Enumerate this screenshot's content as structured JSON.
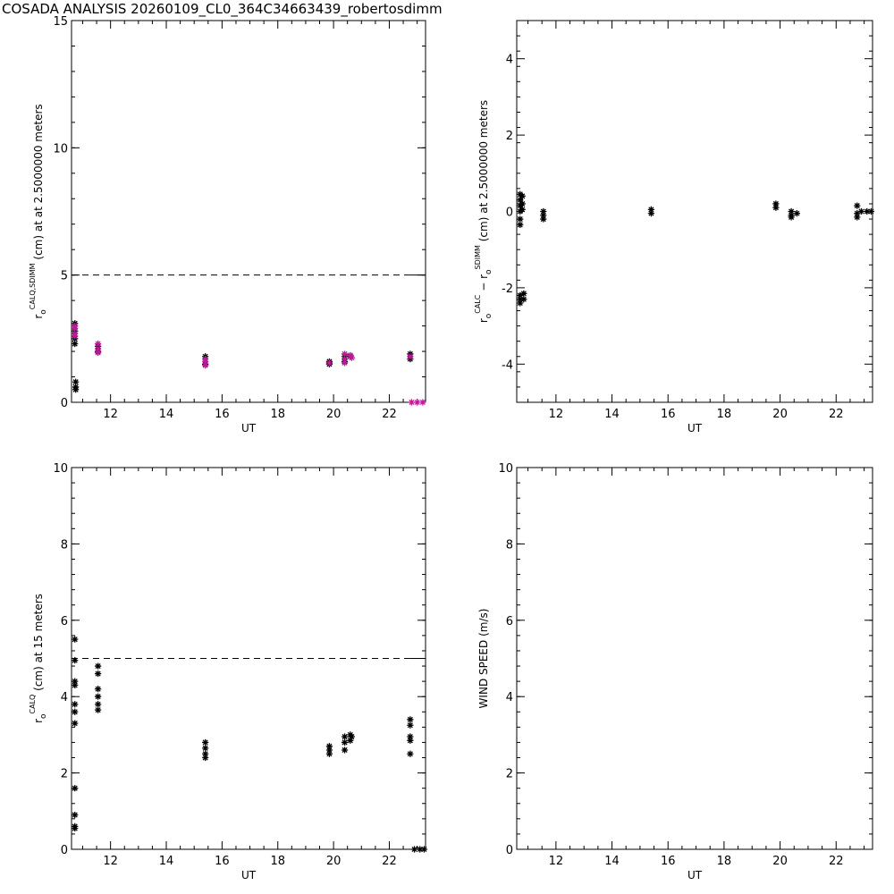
{
  "figure": {
    "title": "COSADA ANALYSIS 20260109_CL0_364C34663439_robertosdimm"
  },
  "chart_data": [
    {
      "type": "scatter",
      "ylabel": "r_o^CALQ,SDIMM (cm) at  at 2.5000000 meters",
      "ylabel_parts": {
        "r": "r",
        "o": "o",
        "sup": "CALQ,SDIMM",
        "rest": "(cm) at  at 2.5000000 meters"
      },
      "xlabel": "UT",
      "xlim": [
        10.6,
        23.3
      ],
      "ylim": [
        0,
        15
      ],
      "xticks": [
        12,
        14,
        16,
        18,
        20,
        22
      ],
      "yticks": [
        0,
        5,
        10,
        15
      ],
      "hline": 5,
      "colors": {
        "series_a": "#000000",
        "series_b": "#c0189a"
      },
      "series": [
        {
          "color": "#000000",
          "points": [
            [
              10.72,
              3.1
            ],
            [
              10.72,
              2.8
            ],
            [
              10.72,
              2.5
            ],
            [
              10.72,
              2.3
            ],
            [
              10.75,
              0.8
            ],
            [
              10.75,
              0.6
            ],
            [
              10.75,
              0.5
            ],
            [
              11.55,
              2.2
            ],
            [
              11.55,
              2.0
            ],
            [
              15.4,
              1.8
            ],
            [
              15.4,
              1.5
            ],
            [
              19.85,
              1.6
            ],
            [
              19.85,
              1.5
            ],
            [
              20.4,
              1.8
            ],
            [
              20.4,
              1.6
            ],
            [
              20.6,
              1.8
            ],
            [
              22.75,
              1.9
            ],
            [
              22.75,
              1.7
            ]
          ]
        },
        {
          "color": "#c0189a",
          "points": [
            [
              10.72,
              3.0
            ],
            [
              10.72,
              2.9
            ],
            [
              10.72,
              2.7
            ],
            [
              10.72,
              2.6
            ],
            [
              11.55,
              2.3
            ],
            [
              11.55,
              2.1
            ],
            [
              11.55,
              1.95
            ],
            [
              15.4,
              1.7
            ],
            [
              15.4,
              1.6
            ],
            [
              15.4,
              1.45
            ],
            [
              19.85,
              1.55
            ],
            [
              20.4,
              1.9
            ],
            [
              20.4,
              1.7
            ],
            [
              20.4,
              1.55
            ],
            [
              20.6,
              1.85
            ],
            [
              20.65,
              1.75
            ],
            [
              22.75,
              1.8
            ],
            [
              22.8,
              0.0
            ],
            [
              23.0,
              0.0
            ],
            [
              23.2,
              0.0
            ]
          ]
        }
      ]
    },
    {
      "type": "scatter",
      "ylabel": "r_o^CALC − r_o^SDIMM (cm) at 2.5000000 meters",
      "ylabel_parts": {
        "r": "r",
        "o": "o",
        "sup1": "CALC",
        "minus": "−",
        "sup2": "SDIMM",
        "rest": "(cm) at 2.5000000 meters"
      },
      "xlabel": "UT",
      "xlim": [
        10.6,
        23.3
      ],
      "ylim": [
        -5,
        5
      ],
      "xticks": [
        12,
        14,
        16,
        18,
        20,
        22
      ],
      "yticks": [
        -4,
        -2,
        0,
        2,
        4
      ],
      "series": [
        {
          "color": "#000000",
          "points": [
            [
              10.72,
              0.45
            ],
            [
              10.72,
              0.3
            ],
            [
              10.72,
              0.15
            ],
            [
              10.72,
              0.0
            ],
            [
              10.72,
              -0.2
            ],
            [
              10.72,
              -0.35
            ],
            [
              10.72,
              -2.2
            ],
            [
              10.72,
              -2.3
            ],
            [
              10.72,
              -2.4
            ],
            [
              10.8,
              0.4
            ],
            [
              10.8,
              0.2
            ],
            [
              10.8,
              0.05
            ],
            [
              10.85,
              -2.15
            ],
            [
              10.85,
              -2.3
            ],
            [
              11.55,
              0.0
            ],
            [
              11.55,
              -0.1
            ],
            [
              11.55,
              -0.2
            ],
            [
              15.4,
              0.05
            ],
            [
              15.4,
              -0.05
            ],
            [
              19.85,
              0.2
            ],
            [
              19.85,
              0.1
            ],
            [
              20.4,
              0.0
            ],
            [
              20.4,
              -0.1
            ],
            [
              20.4,
              -0.15
            ],
            [
              20.6,
              -0.05
            ],
            [
              22.75,
              0.15
            ],
            [
              22.75,
              -0.05
            ],
            [
              22.75,
              -0.15
            ],
            [
              22.9,
              0.0
            ],
            [
              23.1,
              0.0
            ],
            [
              23.25,
              0.0
            ]
          ]
        }
      ]
    },
    {
      "type": "scatter",
      "ylabel": "r_o^CALQ (cm) at 15 meters",
      "ylabel_parts": {
        "r": "r",
        "o": "o",
        "sup": "CALQ",
        "rest": "(cm) at 15 meters"
      },
      "xlabel": "UT",
      "xlim": [
        10.6,
        23.3
      ],
      "ylim": [
        0,
        10
      ],
      "xticks": [
        12,
        14,
        16,
        18,
        20,
        22
      ],
      "yticks": [
        0,
        2,
        4,
        6,
        8,
        10
      ],
      "hline": 5,
      "series": [
        {
          "color": "#000000",
          "points": [
            [
              10.72,
              5.5
            ],
            [
              10.72,
              4.95
            ],
            [
              10.72,
              4.4
            ],
            [
              10.72,
              4.3
            ],
            [
              10.72,
              3.8
            ],
            [
              10.72,
              3.6
            ],
            [
              10.72,
              3.3
            ],
            [
              10.72,
              1.6
            ],
            [
              10.72,
              0.9
            ],
            [
              10.72,
              0.6
            ],
            [
              10.72,
              0.55
            ],
            [
              11.55,
              4.8
            ],
            [
              11.55,
              4.6
            ],
            [
              11.55,
              4.2
            ],
            [
              11.55,
              4.0
            ],
            [
              11.55,
              3.8
            ],
            [
              11.55,
              3.65
            ],
            [
              15.4,
              2.8
            ],
            [
              15.4,
              2.65
            ],
            [
              15.4,
              2.5
            ],
            [
              15.4,
              2.4
            ],
            [
              19.85,
              2.7
            ],
            [
              19.85,
              2.6
            ],
            [
              19.85,
              2.5
            ],
            [
              20.4,
              2.95
            ],
            [
              20.4,
              2.8
            ],
            [
              20.4,
              2.6
            ],
            [
              20.6,
              3.0
            ],
            [
              20.6,
              2.85
            ],
            [
              20.65,
              2.95
            ],
            [
              22.75,
              3.4
            ],
            [
              22.75,
              3.25
            ],
            [
              22.75,
              2.95
            ],
            [
              22.75,
              2.85
            ],
            [
              22.75,
              2.5
            ],
            [
              22.9,
              0.0
            ],
            [
              23.1,
              0.0
            ],
            [
              23.25,
              0.0
            ]
          ]
        }
      ]
    },
    {
      "type": "scatter",
      "ylabel": "WIND SPEED (m/s)",
      "xlabel": "UT",
      "xlim": [
        10.6,
        23.3
      ],
      "ylim": [
        0,
        10
      ],
      "xticks": [
        12,
        14,
        16,
        18,
        20,
        22
      ],
      "yticks": [
        0,
        2,
        4,
        6,
        8,
        10
      ],
      "series": []
    }
  ]
}
